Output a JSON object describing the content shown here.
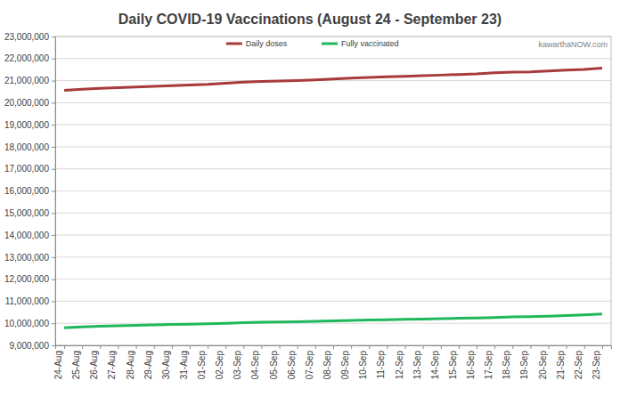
{
  "chart_data": {
    "type": "line",
    "title": "Daily COVID-19 Vaccinations (August 24 - September 23)",
    "annotations": [
      "kawarthaNOW.com"
    ],
    "categories": [
      "24-Aug",
      "25-Aug",
      "26-Aug",
      "27-Aug",
      "28-Aug",
      "29-Aug",
      "30-Aug",
      "31-Aug",
      "01-Sep",
      "02-Sep",
      "03-Sep",
      "04-Sep",
      "05-Sep",
      "06-Sep",
      "07-Sep",
      "08-Sep",
      "09-Sep",
      "10-Sep",
      "11-Sep",
      "12-Sep",
      "13-Sep",
      "14-Sep",
      "15-Sep",
      "16-Sep",
      "17-Sep",
      "18-Sep",
      "19-Sep",
      "20-Sep",
      "21-Sep",
      "22-Sep",
      "23-Sep"
    ],
    "series": [
      {
        "name": "Daily doses",
        "color": "#a83a3a",
        "values": [
          20560000,
          20610000,
          20650000,
          20680000,
          20710000,
          20740000,
          20770000,
          20800000,
          20830000,
          20880000,
          20930000,
          20960000,
          20980000,
          21000000,
          21030000,
          21070000,
          21110000,
          21140000,
          21170000,
          21190000,
          21220000,
          21250000,
          21280000,
          21310000,
          21360000,
          21390000,
          21400000,
          21440000,
          21480000,
          21510000,
          21570000
        ]
      },
      {
        "name": "Fully vaccinated",
        "color": "#1fb85a",
        "values": [
          9800000,
          9840000,
          9870000,
          9890000,
          9910000,
          9930000,
          9950000,
          9960000,
          9980000,
          10000000,
          10030000,
          10050000,
          10060000,
          10070000,
          10090000,
          10110000,
          10130000,
          10150000,
          10160000,
          10180000,
          10190000,
          10210000,
          10230000,
          10240000,
          10260000,
          10290000,
          10300000,
          10320000,
          10350000,
          10380000,
          10420000
        ]
      }
    ],
    "ylim": [
      9000000,
      23000000
    ],
    "yticks": [
      {
        "value": 9000000,
        "label": "9,000,000"
      },
      {
        "value": 10000000,
        "label": "10,000,000"
      },
      {
        "value": 11000000,
        "label": "11,000,000"
      },
      {
        "value": 12000000,
        "label": "12,000,000"
      },
      {
        "value": 13000000,
        "label": "13,000,000"
      },
      {
        "value": 14000000,
        "label": "14,000,000"
      },
      {
        "value": 15000000,
        "label": "15,000,000"
      },
      {
        "value": 16000000,
        "label": "16,000,000"
      },
      {
        "value": 17000000,
        "label": "17,000,000"
      },
      {
        "value": 18000000,
        "label": "18,000,000"
      },
      {
        "value": 19000000,
        "label": "19,000,000"
      },
      {
        "value": 20000000,
        "label": "20,000,000"
      },
      {
        "value": 21000000,
        "label": "21,000,000"
      },
      {
        "value": 22000000,
        "label": "22,000,000"
      },
      {
        "value": 23000000,
        "label": "23,000,000"
      }
    ],
    "grid": true,
    "legend": "top"
  }
}
